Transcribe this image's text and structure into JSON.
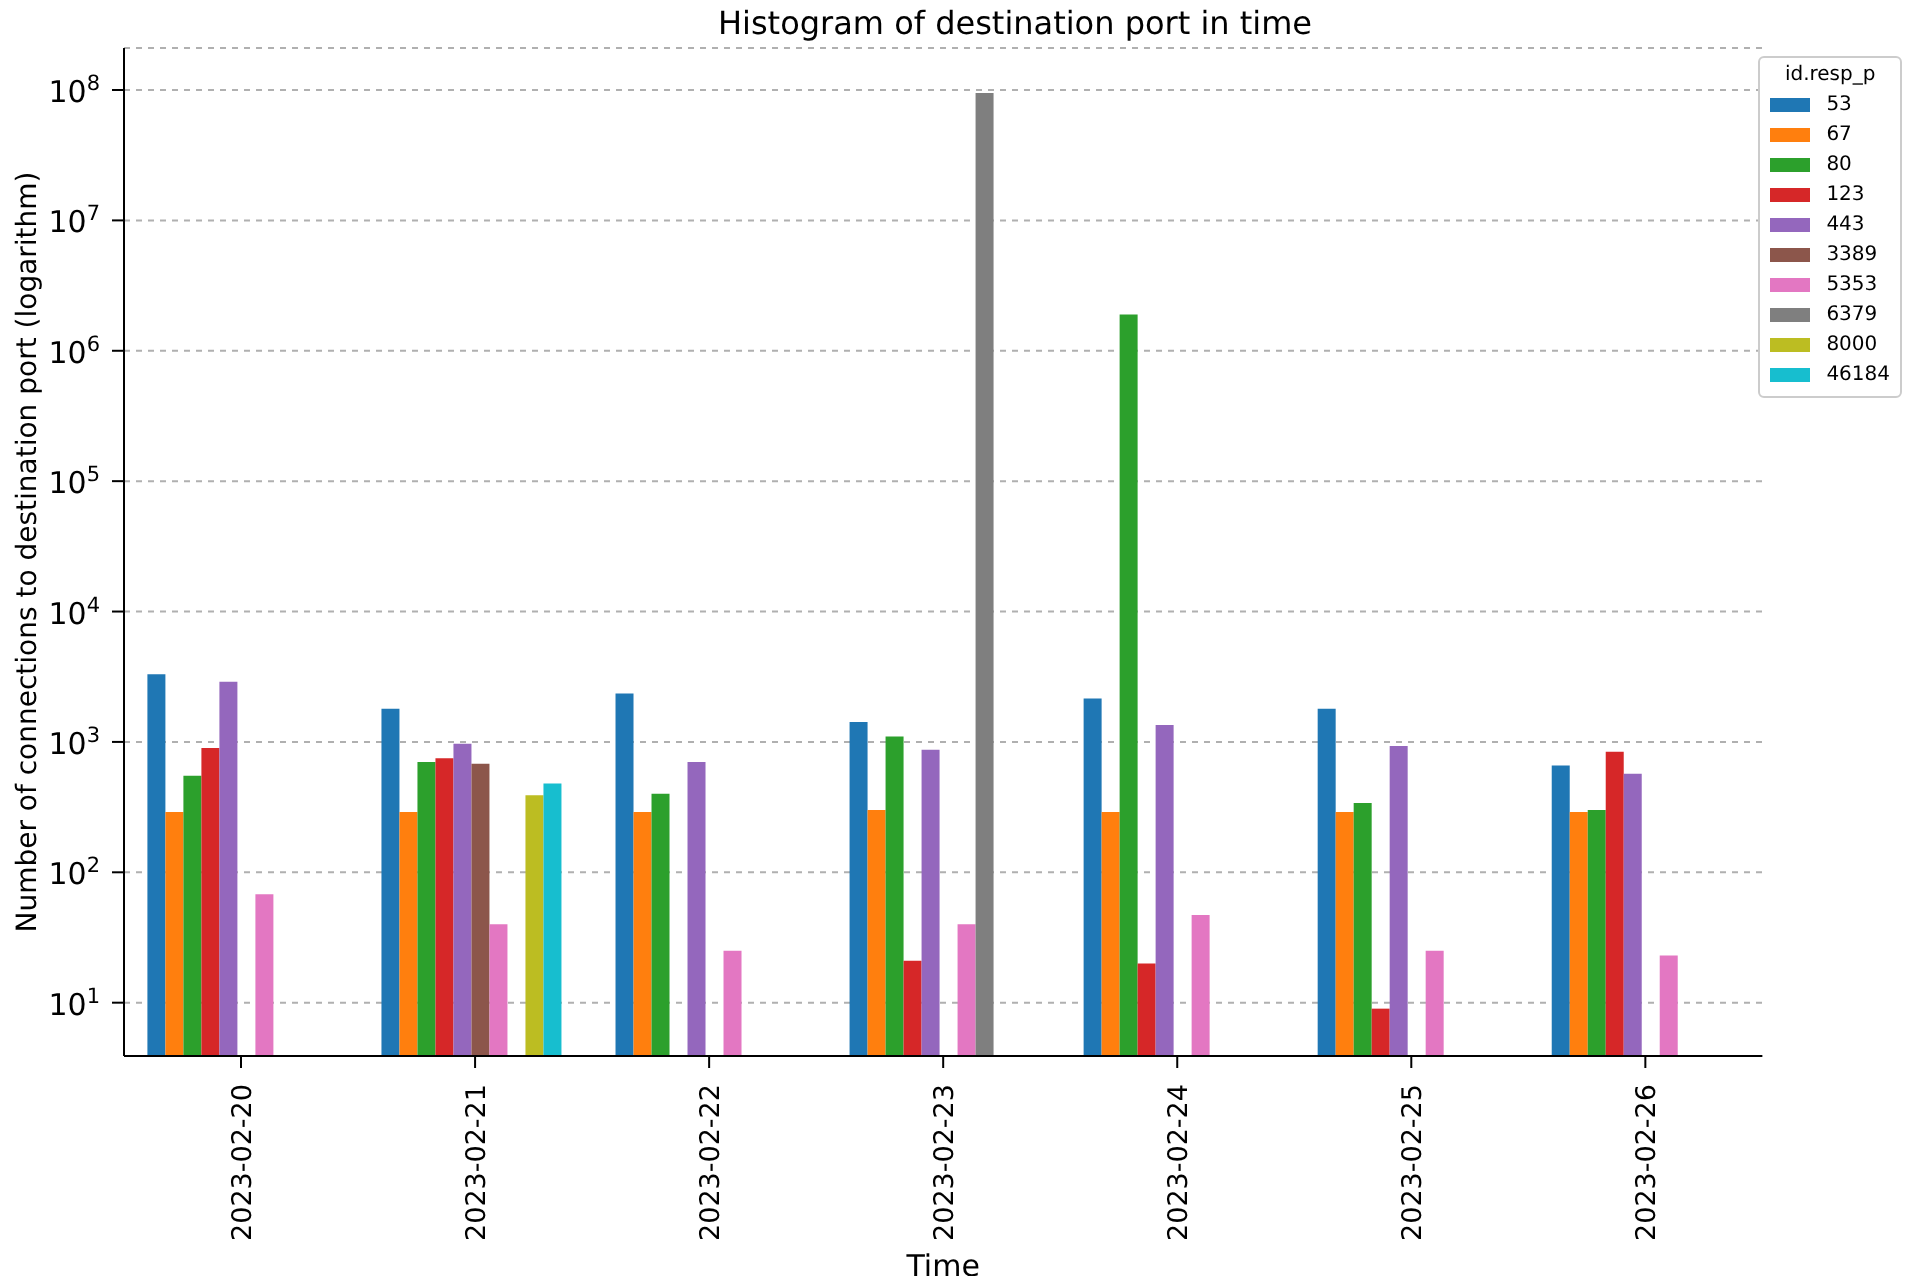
{
  "chart_data": {
    "type": "bar",
    "title": "Histogram of destination port in time",
    "xlabel": "Time",
    "ylabel": "Number of connections to destination port (logarithm)",
    "legend_title": "id.resp_p",
    "categories": [
      "2023-02-20",
      "2023-02-21",
      "2023-02-22",
      "2023-02-23",
      "2023-02-24",
      "2023-02-25",
      "2023-02-26"
    ],
    "series": [
      {
        "name": "53",
        "color": "#1f77b4",
        "values": [
          3300,
          1800,
          2350,
          1420,
          2150,
          1800,
          660
        ]
      },
      {
        "name": "67",
        "color": "#ff7f0e",
        "values": [
          290,
          290,
          290,
          300,
          290,
          290,
          290
        ]
      },
      {
        "name": "80",
        "color": "#2ca02c",
        "values": [
          550,
          700,
          400,
          1100,
          1900000,
          340,
          300
        ]
      },
      {
        "name": "123",
        "color": "#d62728",
        "values": [
          900,
          750,
          null,
          21,
          20,
          9,
          840
        ]
      },
      {
        "name": "443",
        "color": "#9467bd",
        "values": [
          2900,
          970,
          700,
          870,
          1350,
          930,
          570
        ]
      },
      {
        "name": "3389",
        "color": "#8c564b",
        "values": [
          null,
          680,
          null,
          null,
          null,
          null,
          null
        ]
      },
      {
        "name": "5353",
        "color": "#e377c2",
        "values": [
          68,
          40,
          25,
          40,
          47,
          25,
          23
        ]
      },
      {
        "name": "6379",
        "color": "#7f7f7f",
        "values": [
          null,
          null,
          null,
          95000000,
          null,
          null,
          null
        ]
      },
      {
        "name": "8000",
        "color": "#bcbd22",
        "values": [
          null,
          390,
          null,
          null,
          null,
          null,
          null
        ]
      },
      {
        "name": "46184",
        "color": "#17becf",
        "values": [
          null,
          480,
          null,
          null,
          null,
          null,
          null
        ]
      }
    ],
    "log": "y",
    "ylim": [
      3.9,
      210000000
    ],
    "yticks": [
      {
        "value": 10,
        "label": "10$^{1}$"
      },
      {
        "value": 100,
        "label": "10$^{2}$"
      },
      {
        "value": 1000,
        "label": "10$^{3}$"
      },
      {
        "value": 10000,
        "label": "10$^{4}$"
      },
      {
        "value": 100000,
        "label": "10$^{5}$"
      },
      {
        "value": 1000000,
        "label": "10$^{6}$"
      },
      {
        "value": 10000000,
        "label": "10$^{7}$"
      },
      {
        "value": 100000000,
        "label": "10$^{8}$"
      }
    ],
    "grid": "y",
    "legend": "top right"
  }
}
